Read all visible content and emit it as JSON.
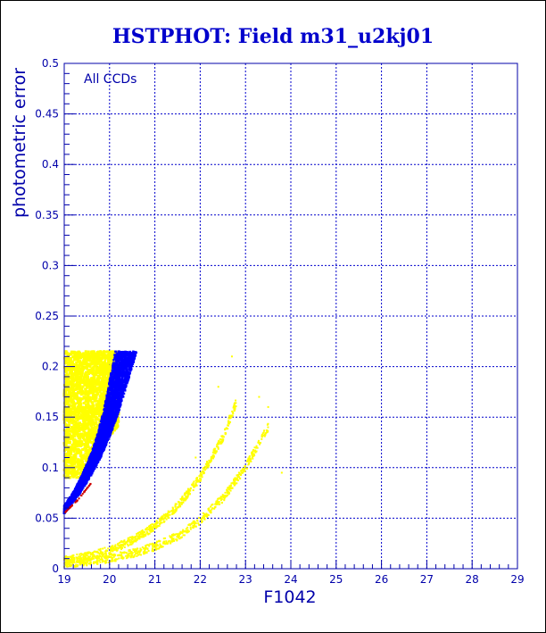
{
  "chart_data": {
    "type": "scatter",
    "title": "HSTPHOT: Field m31_u2kj01",
    "xlabel": "F1042",
    "ylabel": "photometric error",
    "annotation": "All CCDs",
    "xlim": [
      19,
      29
    ],
    "ylim": [
      0,
      0.5
    ],
    "xticks": [
      "19",
      "20",
      "21",
      "22",
      "23",
      "24",
      "25",
      "26",
      "27",
      "28",
      "29"
    ],
    "yticks": [
      "0",
      "0.05",
      "0.1",
      "0.15",
      "0.2",
      "0.25",
      "0.3",
      "0.35",
      "0.4",
      "0.45",
      "0.5"
    ],
    "grid": true,
    "colors": {
      "title": "#0000cc",
      "axis": "#0000aa",
      "grid": "#0000cc",
      "yellow_points": "#ffff00",
      "blue_points": "#0000ff",
      "red_points": "#cc0000"
    },
    "series": [
      {
        "color": "yellow",
        "regions": [
          {
            "shape": "band",
            "x": [
              19.0,
              20.2
            ],
            "y": [
              0.09,
              0.215
            ]
          },
          {
            "shape": "curve",
            "x": [
              19.0,
              19.5,
              20.0,
              20.5,
              21.0,
              21.5,
              22.0,
              22.5,
              22.8
            ],
            "y": [
              0.008,
              0.012,
              0.018,
              0.028,
              0.042,
              0.062,
              0.09,
              0.13,
              0.165
            ]
          },
          {
            "shape": "curve",
            "x": [
              19.0,
              19.5,
              20.0,
              20.5,
              21.0,
              21.5,
              22.0,
              22.5,
              23.0,
              23.5
            ],
            "y": [
              0.005,
              0.007,
              0.01,
              0.015,
              0.022,
              0.032,
              0.048,
              0.07,
              0.1,
              0.14
            ]
          },
          {
            "shape": "scatter",
            "x": [
              21.9,
              22.4,
              22.7,
              23.3,
              23.5,
              23.8
            ],
            "y": [
              0.11,
              0.18,
              0.21,
              0.17,
              0.16,
              0.095
            ]
          }
        ]
      },
      {
        "color": "blue",
        "regions": [
          {
            "shape": "band",
            "x": [
              19.0,
              20.6
            ],
            "y": [
              0.055,
              0.215
            ],
            "edge_x": [
              19.0,
              19.2,
              19.4,
              19.6,
              19.8,
              20.0,
              20.2,
              20.4,
              20.6
            ],
            "edge_y": [
              0.055,
              0.066,
              0.078,
              0.093,
              0.11,
              0.13,
              0.155,
              0.185,
              0.215
            ]
          }
        ]
      },
      {
        "color": "red",
        "regions": [
          {
            "shape": "edge",
            "x": [
              19.0,
              19.3,
              19.6
            ],
            "y": [
              0.055,
              0.068,
              0.085
            ]
          }
        ]
      }
    ]
  }
}
